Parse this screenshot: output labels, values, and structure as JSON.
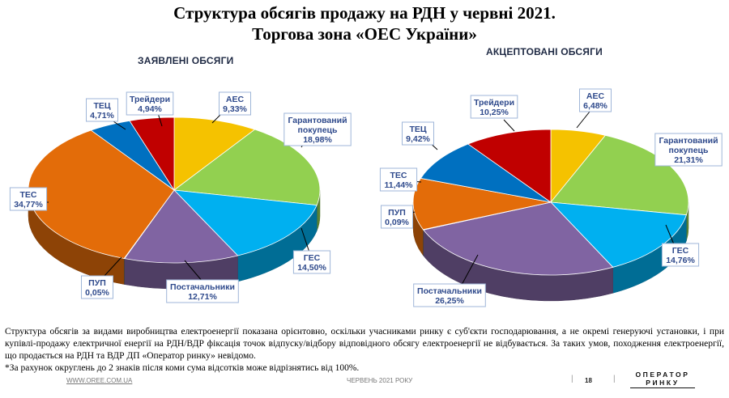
{
  "title_line1": "Структура обсягів продажу на РДН у червні 2021.",
  "title_line2": "Торгова зона «ОЕС України»",
  "chart_data": [
    {
      "type": "pie",
      "title": "ЗАЯВЛЕНІ ОБСЯГИ",
      "slices": [
        {
          "label": "АЕС",
          "value": 9.33,
          "text": "9,33%",
          "color": "#f5c200"
        },
        {
          "label": "Гарантований покупець",
          "value": 18.98,
          "text": "18,98%",
          "color": "#92d050"
        },
        {
          "label": "ГЕС",
          "value": 14.5,
          "text": "14,50%",
          "color": "#00b0f0"
        },
        {
          "label": "Постачальники",
          "value": 12.71,
          "text": "12,71%",
          "color": "#8064a2"
        },
        {
          "label": "ПУП",
          "value": 0.05,
          "text": "0,05%",
          "color": "#2e75b6"
        },
        {
          "label": "ТЕС",
          "value": 34.77,
          "text": "34,77%",
          "color": "#e36c09"
        },
        {
          "label": "ТЕЦ",
          "value": 4.71,
          "text": "4,71%",
          "color": "#0070c0"
        },
        {
          "label": "Трейдери",
          "value": 4.94,
          "text": "4,94%",
          "color": "#c00000"
        }
      ]
    },
    {
      "type": "pie",
      "title": "АКЦЕПТОВАНІ ОБСЯГИ",
      "slices": [
        {
          "label": "АЕС",
          "value": 6.48,
          "text": "6,48%",
          "color": "#f5c200"
        },
        {
          "label": "Гарантований покупець",
          "value": 21.31,
          "text": "21,31%",
          "color": "#92d050"
        },
        {
          "label": "ГЕС",
          "value": 14.76,
          "text": "14,76%",
          "color": "#00b0f0"
        },
        {
          "label": "Постачальники",
          "value": 26.25,
          "text": "26,25%",
          "color": "#8064a2"
        },
        {
          "label": "ПУП",
          "value": 0.09,
          "text": "0,09%",
          "color": "#2e75b6"
        },
        {
          "label": "ТЕС",
          "value": 11.44,
          "text": "11,44%",
          "color": "#e36c09"
        },
        {
          "label": "ТЕЦ",
          "value": 9.42,
          "text": "9,42%",
          "color": "#0070c0"
        },
        {
          "label": "Трейдери",
          "value": 10.25,
          "text": "10,25%",
          "color": "#c00000"
        }
      ]
    }
  ],
  "note_line1": "Структура обсягів за видами виробництва електроенергії показана орієнтовно, оскільки учасниками ринку є суб'єкти господарювання, а не окремі генеруючі установки, і при купівлі-продажу електричної енергії на РДН/ВДР фіксація точок відпуску/відбору відповідного обсягу електроенергії не відбувається. За таких умов, походження електроенергії, що продається на РДН та ВДР ДП «Оператор ринку» невідомо.",
  "note_line2": "*За рахунок округлень до 2 знаків після коми сума відсотків може відрізнятись від 100%.",
  "footer": {
    "url": "WWW.OREE.COM.UA",
    "date": "ЧЕРВЕНЬ 2021 РОКУ",
    "page": "18",
    "logo_line1": "ОПЕРАТОР",
    "logo_line2": "РИНКУ"
  }
}
